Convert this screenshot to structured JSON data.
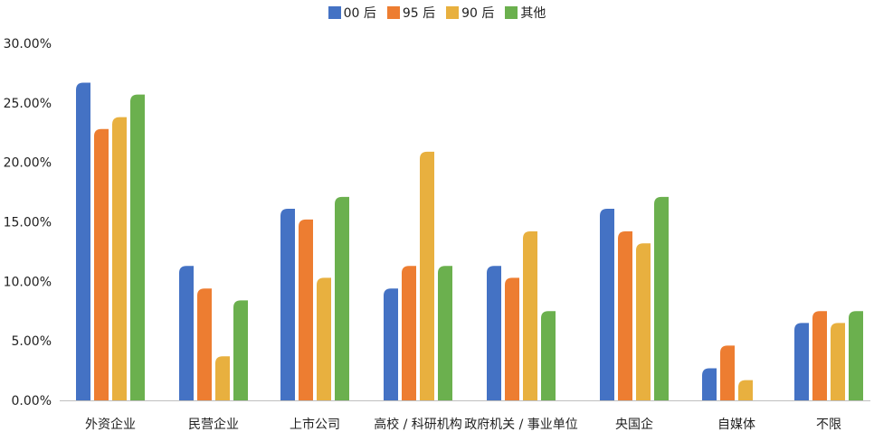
{
  "chart_data": {
    "type": "bar",
    "title": "",
    "xlabel": "",
    "ylabel": "",
    "ylim": [
      0,
      30
    ],
    "yticks": [
      "0.00%",
      "5.00%",
      "10.00%",
      "15.00%",
      "20.00%",
      "25.00%",
      "30.00%"
    ],
    "grid": false,
    "legend_position": "top-center",
    "categories": [
      "外资企业",
      "民营企业",
      "上市公司",
      "高校 / 科研机构",
      "政府机关 / 事业单位",
      "央国企",
      "自媒体",
      "不限"
    ],
    "series": [
      {
        "name": "00 后",
        "color": "#4472C4",
        "values": [
          26.7,
          11.3,
          16.1,
          9.4,
          11.3,
          16.1,
          2.7,
          6.5
        ]
      },
      {
        "name": "95 后",
        "color": "#ED7D31",
        "values": [
          22.8,
          9.4,
          15.2,
          11.3,
          10.3,
          14.2,
          4.6,
          7.5
        ]
      },
      {
        "name": "90 后",
        "color": "#E8B03F",
        "values": [
          23.8,
          3.7,
          10.3,
          20.9,
          14.2,
          13.2,
          1.7,
          6.5
        ]
      },
      {
        "name": "其他",
        "color": "#6BB04E",
        "values": [
          25.7,
          8.4,
          17.1,
          11.3,
          7.5,
          17.1,
          0,
          7.5
        ]
      }
    ]
  }
}
